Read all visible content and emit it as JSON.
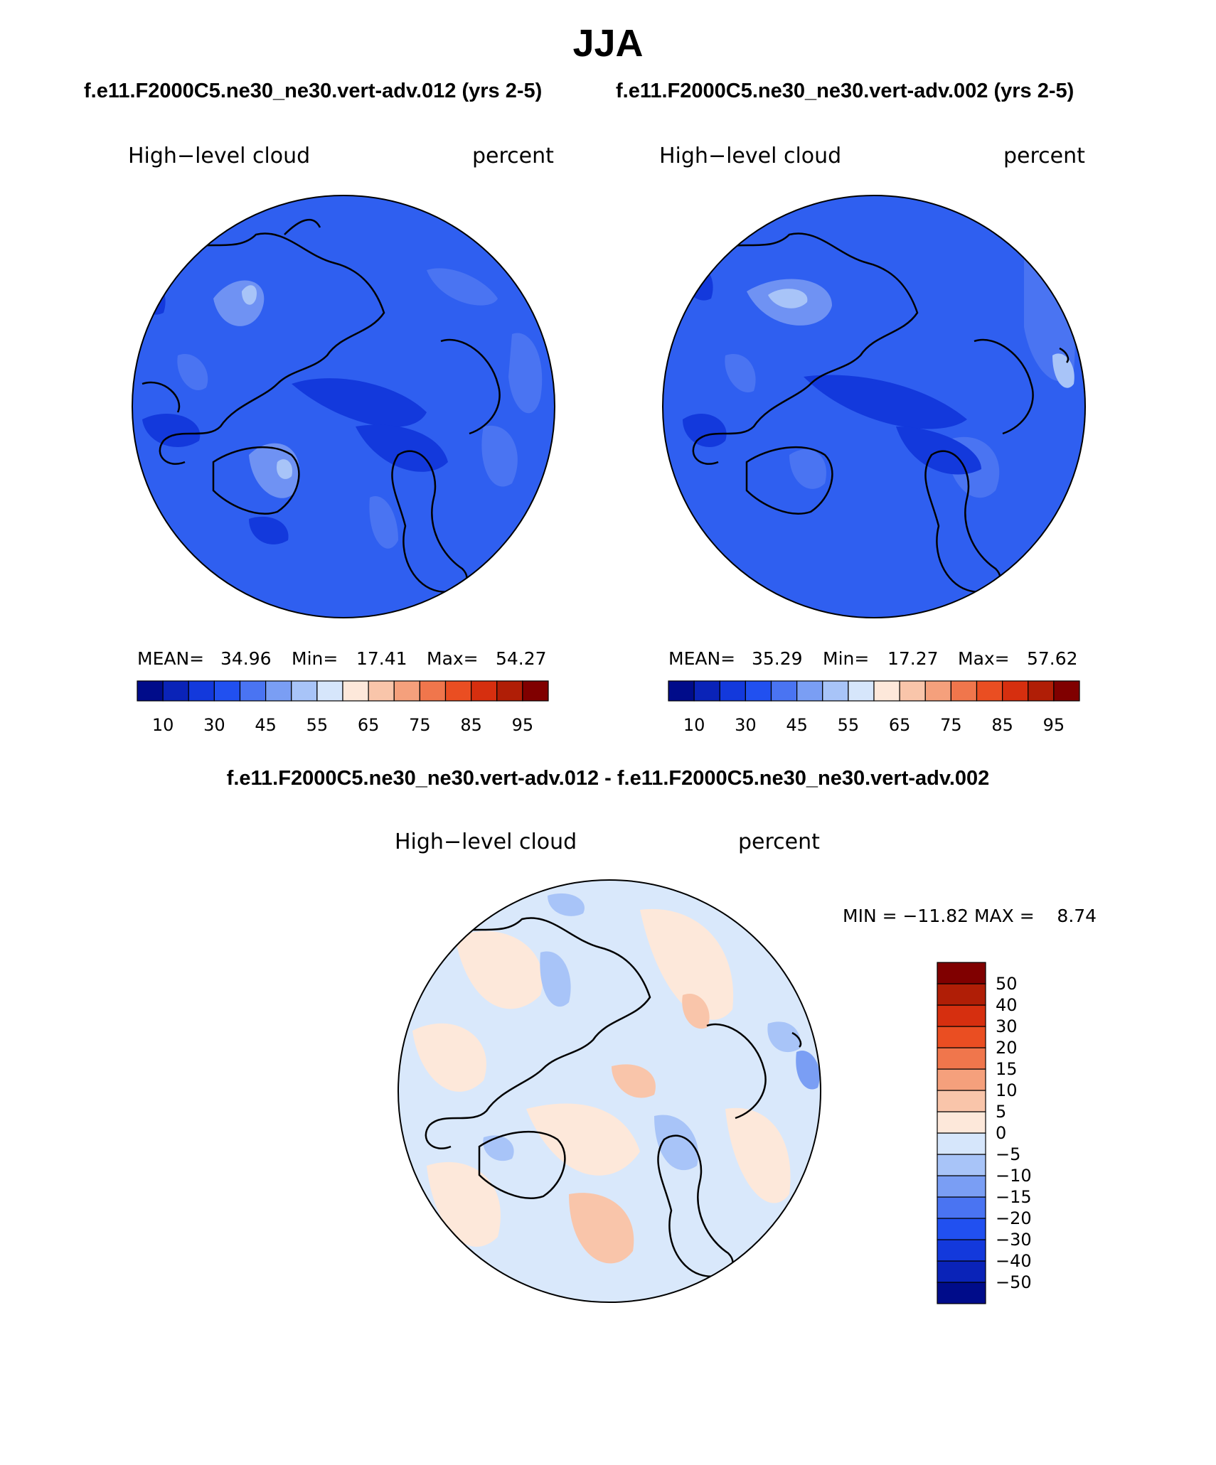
{
  "page": {
    "title": "JJA",
    "subtitle_left": "f.e11.F2000C5.ne30_ne30.vert-adv.012 (yrs 2-5)",
    "subtitle_right": "f.e11.F2000C5.ne30_ne30.vert-adv.002 (yrs 2-5)",
    "subtitle_diff": "f.e11.F2000C5.ne30_ne30.vert-adv.012 - f.e11.F2000C5.ne30_ne30.vert-adv.002"
  },
  "panels": [
    {
      "variable": "High−level cloud",
      "units": "percent",
      "mean_label": "MEAN=",
      "mean": "34.96",
      "min_label": "Min=",
      "min": "17.41",
      "max_label": "Max=",
      "max": "54.27"
    },
    {
      "variable": "High−level cloud",
      "units": "percent",
      "mean_label": "MEAN=",
      "mean": "35.29",
      "min_label": "Min=",
      "min": "17.27",
      "max_label": "Max=",
      "max": "57.62"
    },
    {
      "variable": "High−level cloud",
      "units": "percent",
      "minmax": "MIN = −11.82 MAX =    8.74"
    }
  ],
  "colors": {
    "abs_colorbar": [
      "#000c8a",
      "#0a23b8",
      "#1339dc",
      "#2150f0",
      "#4a74f2",
      "#7a9ef4",
      "#a8c4f8",
      "#d6e6fb",
      "#fde8da",
      "#f9c5aa",
      "#f5a07c",
      "#f0764c",
      "#ea4e22",
      "#d62f0f",
      "#b01e06",
      "#800000"
    ],
    "diff_colorbar": [
      "#000c8a",
      "#0a23b8",
      "#1339dc",
      "#2150f0",
      "#4a74f2",
      "#7a9ef4",
      "#a8c4f8",
      "#d6e6fb",
      "#fde8da",
      "#f9c5aa",
      "#f5a07c",
      "#f0764c",
      "#ea4e22",
      "#d62f0f",
      "#b01e06",
      "#800000"
    ],
    "abs_field_base": "#2f5ff0",
    "diff_field_base": "#d9e8fb"
  },
  "chart_data": [
    {
      "type": "heatmap",
      "projection": "north-polar-stereographic",
      "title": "f.e11.F2000C5.ne30_ne30.vert-adv.012 (yrs 2-5)",
      "field": "High-level cloud",
      "units": "percent",
      "stats": {
        "mean": 34.96,
        "min": 17.41,
        "max": 54.27
      },
      "colorbar_ticks": [
        "10",
        "30",
        "45",
        "55",
        "65",
        "75",
        "85",
        "95"
      ]
    },
    {
      "type": "heatmap",
      "projection": "north-polar-stereographic",
      "title": "f.e11.F2000C5.ne30_ne30.vert-adv.002 (yrs 2-5)",
      "field": "High-level cloud",
      "units": "percent",
      "stats": {
        "mean": 35.29,
        "min": 17.27,
        "max": 57.62
      },
      "colorbar_ticks": [
        "10",
        "30",
        "45",
        "55",
        "65",
        "75",
        "85",
        "95"
      ]
    },
    {
      "type": "heatmap",
      "projection": "north-polar-stereographic",
      "title": "f.e11.F2000C5.ne30_ne30.vert-adv.012 - f.e11.F2000C5.ne30_ne30.vert-adv.002",
      "field": "High-level cloud",
      "units": "percent",
      "stats": {
        "min": -11.82,
        "max": 8.74
      },
      "colorbar_ticks": [
        "50",
        "40",
        "30",
        "20",
        "15",
        "10",
        "5",
        "0",
        "−5",
        "−10",
        "−15",
        "−20",
        "−30",
        "−40",
        "−50"
      ]
    }
  ]
}
